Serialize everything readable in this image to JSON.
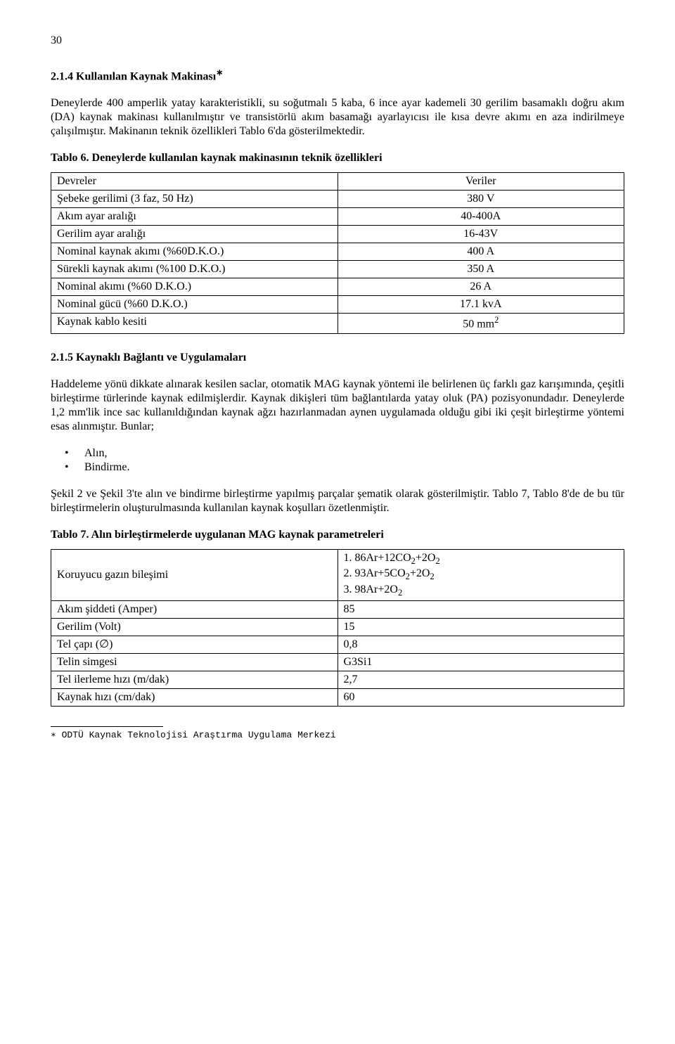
{
  "page_number": "30",
  "section1": {
    "title_prefix": "2.1.4 Kullanılan Kaynak Makinası",
    "title_sup": "∗",
    "para": "Deneylerde 400 amperlik yatay karakteristikli, su soğutmalı 5 kaba, 6 ince ayar kademeli 30 gerilim basamaklı doğru akım (DA) kaynak makinası kullanılmıştır ve transistörlü akım basamağı ayarlayıcısı ile kısa devre akımı en aza indirilmeye çalışılmıştır. Makinanın teknik özellikleri Tablo 6'da gösterilmektedir."
  },
  "table6": {
    "caption": "Tablo 6. Deneylerde kullanılan kaynak makinasının teknik özellikleri",
    "rows": [
      {
        "label": "Devreler",
        "value": "Veriler"
      },
      {
        "label": "Şebeke gerilimi (3 faz, 50 Hz)",
        "value": "380 V"
      },
      {
        "label": "Akım ayar aralığı",
        "value": "40-400A"
      },
      {
        "label": "Gerilim ayar aralığı",
        "value": "16-43V"
      },
      {
        "label": "Nominal kaynak akımı (%60D.K.O.)",
        "value": "400 A"
      },
      {
        "label": "Sürekli kaynak akımı (%100 D.K.O.)",
        "value": "350 A"
      },
      {
        "label": "Nominal akımı (%60 D.K.O.)",
        "value": "26 A"
      },
      {
        "label": "Nominal gücü (%60 D.K.O.)",
        "value": "17.1 kvA"
      }
    ],
    "lastrow": {
      "label": "Kaynak kablo kesiti",
      "value_base": "50 mm",
      "value_sup": "2"
    }
  },
  "section2": {
    "title": "2.1.5 Kaynaklı Bağlantı ve Uygulamaları",
    "para1": "Haddeleme yönü dikkate alınarak kesilen saclar, otomatik MAG kaynak yöntemi ile belirlenen üç farklı gaz karışımında, çeşitli birleştirme türlerinde kaynak edilmişlerdir. Kaynak dikişleri tüm bağlantılarda yatay oluk (PA) pozisyonundadır. Deneylerde 1,2 mm'lik ince sac kullanıldığından kaynak ağzı hazırlanmadan aynen uygulamada olduğu gibi iki çeşit birleştirme yöntemi esas alınmıştır. Bunlar;",
    "bullets": [
      "Alın,",
      "Bindirme."
    ],
    "para2": "Şekil 2 ve Şekil 3'te alın ve bindirme birleştirme yapılmış parçalar şematik olarak gösterilmiştir. Tablo 7, Tablo 8'de de bu tür birleştirmelerin oluşturulmasında kullanılan kaynak koşulları özetlenmiştir."
  },
  "table7": {
    "caption": "Tablo 7. Alın birleştirmelerde uygulanan MAG kaynak parametreleri",
    "row_gas": {
      "label": "Koruyucu gazın bileşimi",
      "lines": [
        {
          "prefix": "1. 86Ar+12CO",
          "sub": "2",
          "mid": "+2O",
          "sub2": "2"
        },
        {
          "prefix": "2. 93Ar+5CO",
          "sub": "2",
          "mid": "+2O",
          "sub2": "2"
        },
        {
          "prefix": "3. 98Ar+2O",
          "sub": "2",
          "mid": "",
          "sub2": ""
        }
      ]
    },
    "rows": [
      {
        "label": "Akım şiddeti (Amper)",
        "value": "85"
      },
      {
        "label": "Gerilim (Volt)",
        "value": "15"
      },
      {
        "label": "Tel çapı (∅)",
        "value": "0,8"
      },
      {
        "label": "Telin simgesi",
        "value": "G3Si1"
      },
      {
        "label": "Tel ilerleme hızı (m/dak)",
        "value": "2,7"
      },
      {
        "label": "Kaynak hızı (cm/dak)",
        "value": "60"
      }
    ]
  },
  "footnote": {
    "marker": "∗",
    "text": " ODTÜ Kaynak Teknolojisi Araştırma Uygulama Merkezi"
  }
}
